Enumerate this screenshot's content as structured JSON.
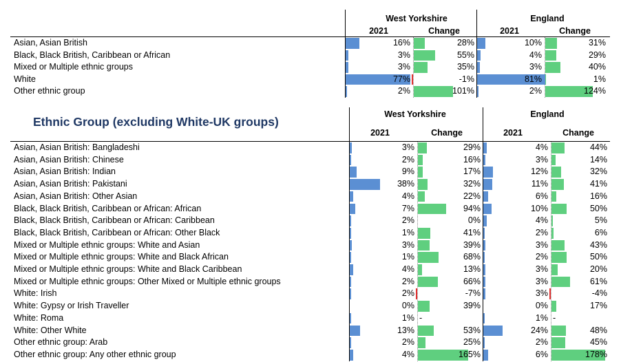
{
  "colors": {
    "blue": "#5b8fd3",
    "green": "#5fcf7f",
    "red": "#e03030",
    "title": "#1f3864"
  },
  "table1": {
    "headers": {
      "region1": "West Yorkshire",
      "region2": "England",
      "col_2021": "2021",
      "col_change": "Change"
    },
    "rows": [
      {
        "label": "Asian, Asian British",
        "wy_2021": "16%",
        "wy_change": "28%",
        "en_2021": "10%",
        "en_change": "31%",
        "wy_2021_v": 16,
        "wy_change_v": 28,
        "en_2021_v": 10,
        "en_change_v": 31
      },
      {
        "label": "Black, Black British, Caribbean or African",
        "wy_2021": "3%",
        "wy_change": "55%",
        "en_2021": "4%",
        "en_change": "29%",
        "wy_2021_v": 3,
        "wy_change_v": 55,
        "en_2021_v": 4,
        "en_change_v": 29
      },
      {
        "label": "Mixed or Multiple ethnic groups",
        "wy_2021": "3%",
        "wy_change": "35%",
        "en_2021": "3%",
        "en_change": "40%",
        "wy_2021_v": 3,
        "wy_change_v": 35,
        "en_2021_v": 3,
        "en_change_v": 40
      },
      {
        "label": "White",
        "wy_2021": "77%",
        "wy_change": "-1%",
        "en_2021": "81%",
        "en_change": "1%",
        "wy_2021_v": 77,
        "wy_change_v": -1,
        "en_2021_v": 81,
        "en_change_v": 1
      },
      {
        "label": "Other ethnic group",
        "wy_2021": "2%",
        "wy_change": "101%",
        "en_2021": "2%",
        "en_change": "124%",
        "wy_2021_v": 2,
        "wy_change_v": 101,
        "en_2021_v": 2,
        "en_change_v": 124
      }
    ]
  },
  "table2": {
    "title": "Ethnic Group (excluding White-UK groups)",
    "headers": {
      "region1": "West Yorkshire",
      "region2": "England",
      "col_2021": "2021",
      "col_change": "Change"
    },
    "rows": [
      {
        "label": "Asian, Asian British: Bangladeshi",
        "wy_2021": "3%",
        "wy_change": "29%",
        "en_2021": "4%",
        "en_change": "44%",
        "wy_2021_v": 3,
        "wy_change_v": 29,
        "en_2021_v": 4,
        "en_change_v": 44
      },
      {
        "label": "Asian, Asian British: Chinese",
        "wy_2021": "2%",
        "wy_change": "16%",
        "en_2021": "3%",
        "en_change": "14%",
        "wy_2021_v": 2,
        "wy_change_v": 16,
        "en_2021_v": 3,
        "en_change_v": 14
      },
      {
        "label": "Asian, Asian British: Indian",
        "wy_2021": "9%",
        "wy_change": "17%",
        "en_2021": "12%",
        "en_change": "32%",
        "wy_2021_v": 9,
        "wy_change_v": 17,
        "en_2021_v": 12,
        "en_change_v": 32
      },
      {
        "label": "Asian, Asian British: Pakistani",
        "wy_2021": "38%",
        "wy_change": "32%",
        "en_2021": "11%",
        "en_change": "41%",
        "wy_2021_v": 38,
        "wy_change_v": 32,
        "en_2021_v": 11,
        "en_change_v": 41
      },
      {
        "label": "Asian, Asian British: Other Asian",
        "wy_2021": "4%",
        "wy_change": "22%",
        "en_2021": "6%",
        "en_change": "16%",
        "wy_2021_v": 4,
        "wy_change_v": 22,
        "en_2021_v": 6,
        "en_change_v": 16
      },
      {
        "label": "Black, Black British, Caribbean or African: African",
        "wy_2021": "7%",
        "wy_change": "94%",
        "en_2021": "10%",
        "en_change": "50%",
        "wy_2021_v": 7,
        "wy_change_v": 94,
        "en_2021_v": 10,
        "en_change_v": 50
      },
      {
        "label": "Black, Black British, Caribbean or African: Caribbean",
        "wy_2021": "2%",
        "wy_change": "0%",
        "en_2021": "4%",
        "en_change": "5%",
        "wy_2021_v": 2,
        "wy_change_v": 0,
        "en_2021_v": 4,
        "en_change_v": 5
      },
      {
        "label": "Black, Black British, Caribbean or African: Other Black",
        "wy_2021": "1%",
        "wy_change": "41%",
        "en_2021": "2%",
        "en_change": "6%",
        "wy_2021_v": 1,
        "wy_change_v": 41,
        "en_2021_v": 2,
        "en_change_v": 6
      },
      {
        "label": "Mixed or Multiple ethnic groups: White and Asian",
        "wy_2021": "3%",
        "wy_change": "39%",
        "en_2021": "3%",
        "en_change": "43%",
        "wy_2021_v": 3,
        "wy_change_v": 39,
        "en_2021_v": 3,
        "en_change_v": 43
      },
      {
        "label": "Mixed or Multiple ethnic groups: White and Black African",
        "wy_2021": "1%",
        "wy_change": "68%",
        "en_2021": "2%",
        "en_change": "50%",
        "wy_2021_v": 1,
        "wy_change_v": 68,
        "en_2021_v": 2,
        "en_change_v": 50
      },
      {
        "label": "Mixed or Multiple ethnic groups: White and Black Caribbean",
        "wy_2021": "4%",
        "wy_change": "13%",
        "en_2021": "3%",
        "en_change": "20%",
        "wy_2021_v": 4,
        "wy_change_v": 13,
        "en_2021_v": 3,
        "en_change_v": 20
      },
      {
        "label": "Mixed or Multiple ethnic groups: Other Mixed or Multiple ethnic groups",
        "wy_2021": "2%",
        "wy_change": "66%",
        "en_2021": "3%",
        "en_change": "61%",
        "wy_2021_v": 2,
        "wy_change_v": 66,
        "en_2021_v": 3,
        "en_change_v": 61
      },
      {
        "label": "White: Irish",
        "wy_2021": "2%",
        "wy_change": "-7%",
        "en_2021": "3%",
        "en_change": "-4%",
        "wy_2021_v": 2,
        "wy_change_v": -7,
        "en_2021_v": 3,
        "en_change_v": -4
      },
      {
        "label": "White: Gypsy or Irish Traveller",
        "wy_2021": "0%",
        "wy_change": "39%",
        "en_2021": "0%",
        "en_change": "17%",
        "wy_2021_v": 0,
        "wy_change_v": 39,
        "en_2021_v": 0,
        "en_change_v": 17
      },
      {
        "label": "White: Roma",
        "wy_2021": "1%",
        "wy_change": "-",
        "en_2021": "1%",
        "en_change": "-",
        "wy_2021_v": 1,
        "wy_change_v": null,
        "en_2021_v": 1,
        "en_change_v": null
      },
      {
        "label": "White: Other White",
        "wy_2021": "13%",
        "wy_change": "53%",
        "en_2021": "24%",
        "en_change": "48%",
        "wy_2021_v": 13,
        "wy_change_v": 53,
        "en_2021_v": 24,
        "en_change_v": 48
      },
      {
        "label": "Other ethnic group: Arab",
        "wy_2021": "2%",
        "wy_change": "25%",
        "en_2021": "2%",
        "en_change": "45%",
        "wy_2021_v": 2,
        "wy_change_v": 25,
        "en_2021_v": 2,
        "en_change_v": 45
      },
      {
        "label": "Other ethnic group: Any other ethnic group",
        "wy_2021": "4%",
        "wy_change": "165%",
        "en_2021": "6%",
        "en_change": "178%",
        "wy_2021_v": 4,
        "wy_change_v": 165,
        "en_2021_v": 6,
        "en_change_v": 178
      }
    ]
  }
}
